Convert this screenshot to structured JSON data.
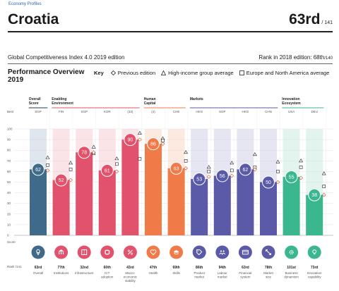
{
  "header": {
    "top_link": "Economy Profiles",
    "country": "Croatia",
    "rank": "63rd",
    "rank_of": "/ 141",
    "edition": "Global Competitiveness Index 4.0 2019 edition",
    "rank_2018_label": "Rank in 2018 edition: 68th",
    "rank_2018_of": "/140"
  },
  "overview": {
    "title_line1": "Performance Overview",
    "title_line2": "2019",
    "key_label": "Key",
    "legend_prev": "Previous edition",
    "legend_high": "High-income group average",
    "legend_europe": "Europe and North America average"
  },
  "axis": {
    "best_label": "Best",
    "score_label": "Score",
    "rank_prefix": "Rank /141",
    "ticks": [
      "100",
      "90",
      "80",
      "70",
      "60",
      "50",
      "40",
      "30",
      "20",
      "10",
      "0"
    ]
  },
  "chart_data": {
    "type": "bar",
    "ylim": [
      0,
      100
    ],
    "groups": [
      {
        "title": [
          "Overall",
          "Score"
        ],
        "color": "#1f3b5b"
      },
      {
        "title": [
          "Enabling",
          "Environment"
        ],
        "color": "#e2526d"
      },
      {
        "title": [
          "Human",
          "Capital"
        ],
        "color": "#f07b49"
      },
      {
        "title": [
          "Markets"
        ],
        "color": "#5a5aa8"
      },
      {
        "title": [
          "Innovation",
          "Ecosystem"
        ],
        "color": "#3bb78f"
      }
    ],
    "bars": [
      {
        "group": 0,
        "best": "SGP",
        "score": 62,
        "label": "62",
        "rank": "63rd",
        "name": [
          "Overall"
        ],
        "icon": "location-pin-icon",
        "color": "#3f6a8a",
        "light": "#b8c8d6",
        "prev": 61,
        "high": 73,
        "europe": 66
      },
      {
        "group": 1,
        "best": "FIN",
        "score": 52,
        "label": "52",
        "rank": "77th",
        "name": [
          "Institutions"
        ],
        "icon": "institution-building-icon",
        "color": "#e2526d",
        "light": "#f4c3cc",
        "prev": 52,
        "high": 68,
        "europe": 62
      },
      {
        "group": 1,
        "best": "SGP",
        "score": 78,
        "label": "78",
        "rank": "32nd",
        "name": [
          "Infrastructure"
        ],
        "icon": "infrastructure-road-icon",
        "color": "#e2526d",
        "light": "#f4c3cc",
        "prev": 78,
        "high": 83,
        "europe": 77
      },
      {
        "group": 1,
        "best": "KOR",
        "score": 61,
        "label": "61",
        "rank": "60th",
        "name": [
          "ICT",
          "adoption"
        ],
        "icon": "ict-chip-icon",
        "color": "#e2526d",
        "light": "#f4c3cc",
        "prev": 60,
        "high": 72,
        "europe": 67
      },
      {
        "group": 1,
        "best": "(33)",
        "score": 90,
        "label": "90",
        "rank": "43rd",
        "name": [
          "Macro-",
          "economic",
          "stability"
        ],
        "icon": "macroeconomic-percent-icon",
        "color": "#e2526d",
        "light": "#f4c3cc",
        "prev": 90,
        "high": 96,
        "europe": 72
      },
      {
        "group": 2,
        "best": "(4)",
        "score": 86,
        "label": "86",
        "rank": "47th",
        "name": [
          "Health"
        ],
        "icon": "health-heart-icon",
        "color": "#f07b49",
        "light": "#f9d0bc",
        "prev": 86,
        "high": 91,
        "europe": 89
      },
      {
        "group": 2,
        "best": "CHE",
        "score": 63,
        "label": "63",
        "rank": "69th",
        "name": [
          "Skills"
        ],
        "icon": "skills-mortarboard-icon",
        "color": "#f07b49",
        "light": "#f9d0bc",
        "prev": 63,
        "high": 78,
        "europe": 70
      },
      {
        "group": 3,
        "best": "HKG",
        "score": 53,
        "label": "53",
        "rank": "86th",
        "name": [
          "Product",
          "market"
        ],
        "icon": "product-market-tag-icon",
        "color": "#5a5aa8",
        "light": "#c8c8e4",
        "prev": 55,
        "high": 64,
        "europe": 60
      },
      {
        "group": 3,
        "best": "SGP",
        "score": 56,
        "label": "56",
        "rank": "94th",
        "name": [
          "Labour",
          "market"
        ],
        "icon": "labour-market-people-icon",
        "color": "#5a5aa8",
        "light": "#c8c8e4",
        "prev": 56,
        "high": 68,
        "europe": 61
      },
      {
        "group": 3,
        "best": "HKG",
        "score": 62,
        "label": "62",
        "rank": "63rd",
        "name": [
          "Financial",
          "system"
        ],
        "icon": "financial-card-icon",
        "color": "#5a5aa8",
        "light": "#c8c8e4",
        "prev": 62,
        "high": 76,
        "europe": 64
      },
      {
        "group": 3,
        "best": "CHN",
        "score": 50,
        "label": "50",
        "rank": "78th",
        "name": [
          "Market",
          "size"
        ],
        "icon": "market-size-arrows-icon",
        "color": "#5a5aa8",
        "light": "#c8c8e4",
        "prev": 50,
        "high": 69,
        "europe": 60
      },
      {
        "group": 4,
        "best": "USA",
        "score": 55,
        "label": "55",
        "rank": "101st",
        "name": [
          "Business",
          "dynamism"
        ],
        "icon": "business-dynamism-gear-icon",
        "color": "#3bb78f",
        "light": "#bfe6d8",
        "prev": 54,
        "high": 70,
        "europe": 64
      },
      {
        "group": 4,
        "best": "DEU",
        "score": 38,
        "label": "38",
        "rank": "73rd",
        "name": [
          "Innovation",
          "capability"
        ],
        "icon": "innovation-bulb-icon",
        "color": "#3bb78f",
        "light": "#bfe6d8",
        "prev": 38,
        "high": 58,
        "europe": 46
      }
    ]
  }
}
